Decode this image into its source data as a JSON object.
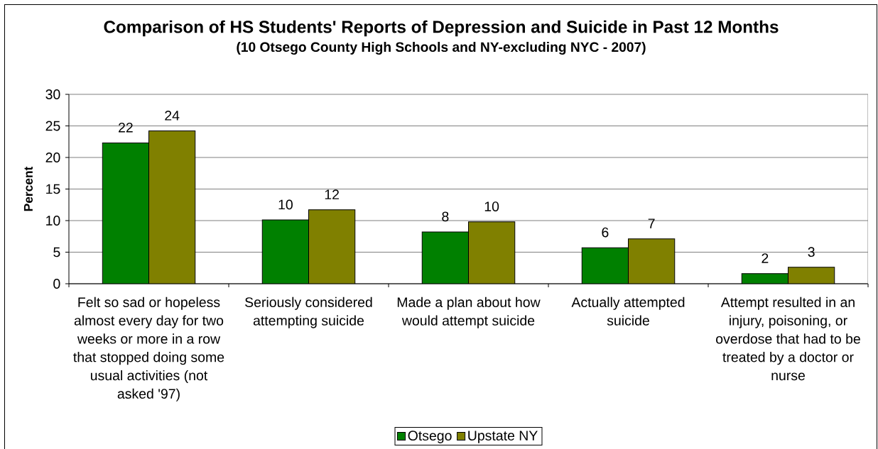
{
  "chart_data": {
    "type": "bar",
    "title": "Comparison of HS Students' Reports of Depression and Suicide in Past 12 Months",
    "subtitle": "(10 Otsego County High Schools and NY-excluding NYC - 2007)",
    "ylabel": "Percent",
    "categories": [
      "Felt so sad or hopeless almost every day for two weeks or more in a row that stopped doing some usual activities (not asked '97)",
      "Seriously considered attempting suicide",
      "Made a plan about how would attempt suicide",
      "Actually attempted suicide",
      "Attempt resulted in an injury, poisoning, or overdose that had to be treated by a doctor or nurse"
    ],
    "series": [
      {
        "name": "Otsego",
        "color": "#008000",
        "values": [
          22.3,
          10.1,
          8.2,
          5.7,
          1.6
        ],
        "value_labels": [
          "22",
          "10",
          "8",
          "6",
          "2"
        ]
      },
      {
        "name": "Upstate NY",
        "color": "#808000",
        "values": [
          24.2,
          11.7,
          9.8,
          7.1,
          2.6
        ],
        "value_labels": [
          "24",
          "12",
          "10",
          "7",
          "3"
        ]
      }
    ],
    "ylim": [
      0,
      30
    ],
    "yticks": [
      0,
      5,
      10,
      15,
      20,
      25,
      30
    ],
    "grid": "y",
    "legend": "bottom"
  }
}
